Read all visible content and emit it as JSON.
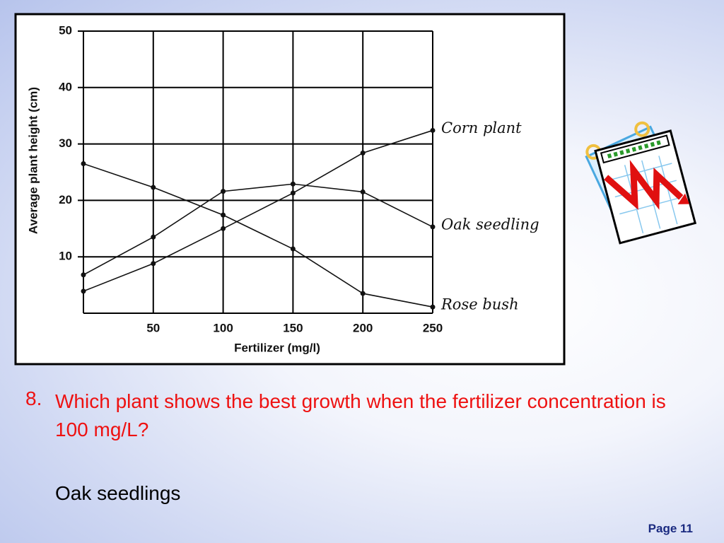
{
  "chart_data": {
    "type": "line",
    "y_label": "Average plant height (cm)",
    "x_label": "Fertilizer (mg/l)",
    "x": [
      0,
      50,
      100,
      150,
      200,
      250
    ],
    "xlim": [
      0,
      250
    ],
    "xticks": [
      50,
      100,
      150,
      200,
      250
    ],
    "ylim": [
      0,
      50
    ],
    "yticks": [
      10,
      20,
      30,
      40,
      50
    ],
    "grid": true,
    "series": [
      {
        "name": "Corn plant",
        "color": "#111111",
        "values": [
          3.9,
          8.8,
          15,
          21.3,
          28.4,
          32.4
        ]
      },
      {
        "name": "Oak seedling",
        "color": "#111111",
        "values": [
          6.8,
          13.5,
          21.6,
          22.9,
          21.5,
          15.3
        ]
      },
      {
        "name": "Rose bush",
        "color": "#111111",
        "values": [
          26.5,
          22.3,
          17.4,
          11.4,
          3.5,
          1.1
        ]
      }
    ]
  },
  "question": {
    "number": "8.",
    "text": "Which plant shows the best growth when the fertilizer concentration is 100 mg/L?"
  },
  "answer": "Oak seedlings",
  "page": "Page 11"
}
